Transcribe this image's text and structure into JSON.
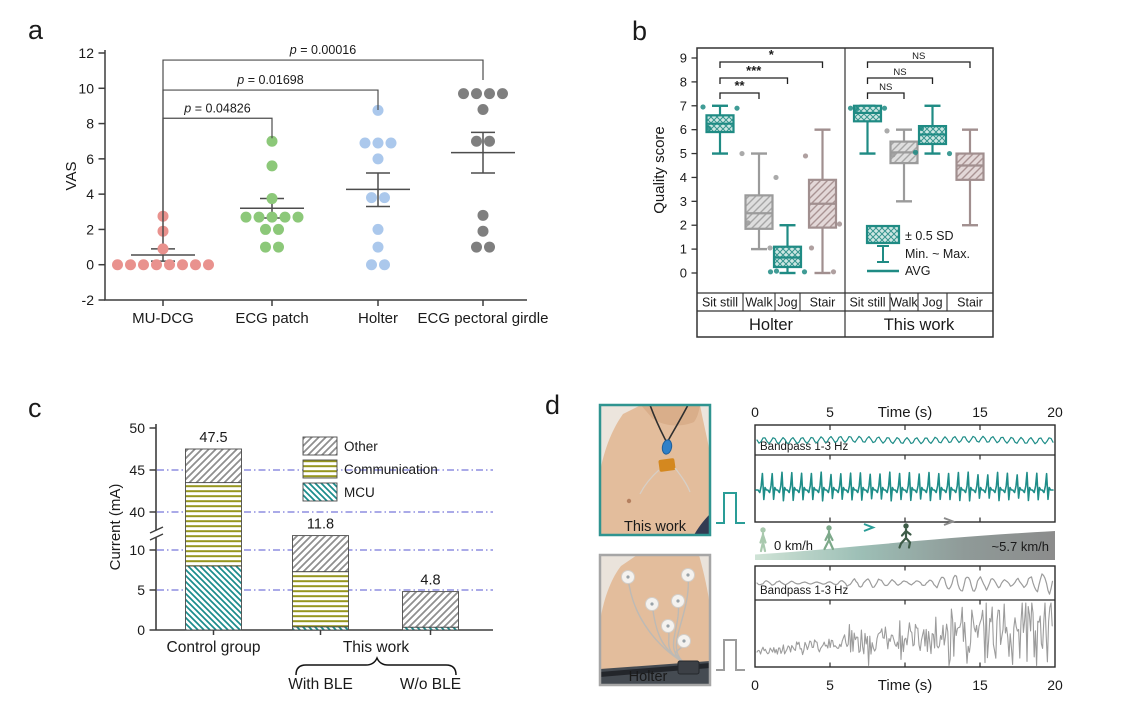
{
  "panels": {
    "a": "a",
    "b": "b",
    "c": "c",
    "d": "d"
  },
  "chart_data": [
    {
      "panel": "a",
      "type": "scatter",
      "ylabel": "VAS",
      "ylim": [
        -2,
        12
      ],
      "yticks": [
        -2,
        0,
        2,
        4,
        6,
        8,
        10,
        12
      ],
      "categories": [
        "MU-DCG",
        "ECG patch",
        "Holter",
        "ECG pectoral girdle"
      ],
      "colors": [
        "#e9928e",
        "#8cc879",
        "#abc8ec",
        "#7f7f7f"
      ],
      "points": [
        [
          0,
          0,
          0,
          0,
          0,
          0,
          0,
          0,
          0.9,
          1.9,
          2.75
        ],
        [
          1,
          1,
          2,
          2,
          2.7,
          2.7,
          2.7,
          2.7,
          2.7,
          3.75,
          5.6,
          7
        ],
        [
          0,
          0,
          1,
          2,
          3.8,
          3.8,
          6,
          6.9,
          6.9,
          6.9,
          8.75
        ],
        [
          1,
          1,
          1.9,
          2.8,
          7,
          7,
          8.8,
          9.7,
          9.7,
          9.7,
          9.7
        ]
      ],
      "mean": [
        0.55,
        3.2,
        4.27,
        6.35
      ],
      "err_low": [
        0.2,
        2.65,
        3.3,
        5.2
      ],
      "err_high": [
        0.9,
        3.75,
        5.2,
        7.5
      ],
      "pvalues": [
        {
          "label": "p = 0.04826",
          "from": 0,
          "to": 1,
          "height": 8.3
        },
        {
          "label": "p = 0.01698",
          "from": 0,
          "to": 2,
          "height": 9.9
        },
        {
          "label": "p = 0.00016",
          "from": 0,
          "to": 3,
          "height": 11.6
        }
      ]
    },
    {
      "panel": "b",
      "type": "box",
      "ylabel": "Quality score",
      "ylim": [
        0,
        9
      ],
      "legend": {
        "box": "± 0.5 SD",
        "whisker": "Min. ~ Max.",
        "line": "AVG"
      },
      "groups": [
        {
          "name": "Holter",
          "boxes": [
            {
              "cat": "Sit still",
              "color": "teal",
              "min": 5,
              "max": 7,
              "q1": 5.9,
              "q3": 6.6,
              "avg": 6.25,
              "marks": [
                6.95,
                6.9,
                6.05
              ]
            },
            {
              "cat": "Walk",
              "color": "gray",
              "min": 1,
              "max": 5,
              "q1": 1.85,
              "q3": 3.25,
              "avg": 2.5,
              "marks": [
                5,
                4,
                2.1,
                1.05
              ]
            },
            {
              "cat": "Jog",
              "color": "teal",
              "min": 0,
              "max": 2,
              "q1": 0.25,
              "q3": 1.1,
              "avg": 0.65,
              "marks": [
                0.05,
                0.05,
                0.08
              ]
            },
            {
              "cat": "Stair",
              "color": "mauve",
              "min": 0,
              "max": 6,
              "q1": 1.9,
              "q3": 3.9,
              "avg": 2.9,
              "marks": [
                4.9,
                2.05,
                1.05,
                0.05
              ]
            }
          ],
          "sig": [
            {
              "to": 1,
              "label": "**"
            },
            {
              "to": 2,
              "label": "***"
            },
            {
              "to": 3,
              "label": "*"
            }
          ]
        },
        {
          "name": "This work",
          "boxes": [
            {
              "cat": "Sit still",
              "color": "teal",
              "min": 5,
              "max": 7,
              "q1": 6.35,
              "q3": 7,
              "avg": 6.7,
              "marks": [
                6.9,
                6.9,
                6.85
              ]
            },
            {
              "cat": "Walk",
              "color": "gray",
              "min": 3,
              "max": 6,
              "q1": 4.6,
              "q3": 5.5,
              "avg": 5.05,
              "marks": [
                5.95,
                5.9,
                4.95
              ]
            },
            {
              "cat": "Jog",
              "color": "teal",
              "min": 5,
              "max": 7,
              "q1": 5.4,
              "q3": 6.15,
              "avg": 5.8,
              "marks": [
                5.05,
                5,
                6.05
              ]
            },
            {
              "cat": "Stair",
              "color": "mauve",
              "min": 2,
              "max": 6,
              "q1": 3.9,
              "q3": 5,
              "avg": 4.5,
              "marks": []
            }
          ],
          "sig": [
            {
              "to": 1,
              "label": "NS"
            },
            {
              "to": 2,
              "label": "NS"
            },
            {
              "to": 3,
              "label": "NS"
            }
          ]
        }
      ]
    },
    {
      "panel": "c",
      "type": "bar",
      "ylabel": "Current (mA)",
      "yticks": [
        0,
        5,
        10,
        40,
        45,
        50
      ],
      "gridlines": [
        5,
        10,
        40,
        45
      ],
      "axis_break_between": [
        10,
        40
      ],
      "series_order": [
        "MCU",
        "Communication",
        "Other"
      ],
      "legend": [
        "Other",
        "Communication",
        "MCU"
      ],
      "colors": {
        "MCU": "#1a8c8c",
        "Communication": "#96961e",
        "Other": "#8f8f8f"
      },
      "bars": [
        {
          "label": "Control group",
          "total": 47.5,
          "segments": {
            "MCU": 8,
            "Communication": 35.5,
            "Other": 4
          }
        },
        {
          "label": "With BLE",
          "total": 11.8,
          "segments": {
            "MCU": 0.4,
            "Communication": 6.9,
            "Other": 4.5
          }
        },
        {
          "label": "W/o BLE",
          "total": 4.8,
          "segments": {
            "MCU": 0.35,
            "Communication": 0,
            "Other": 4.45
          }
        }
      ],
      "group_labels": [
        "Control group",
        "This work"
      ],
      "sub_labels": [
        "With BLE",
        "W/o BLE"
      ]
    },
    {
      "panel": "d",
      "type": "line",
      "photo_labels": [
        "This work",
        "Holter"
      ],
      "x_axis": {
        "title": "Time (s)",
        "ticks": [
          0,
          5,
          15,
          20
        ],
        "range": [
          0,
          20
        ]
      },
      "top_trace_label": "Bandpass 1-3 Hz",
      "bottom_trace_label": "Bandpass 1-3 Hz",
      "speed_start": "0 km/h",
      "speed_end": "~5.7 km/h",
      "series": [
        {
          "name": "This work",
          "color": "#1e8d88"
        },
        {
          "name": "Holter",
          "color": "#9c9c9c"
        }
      ]
    }
  ]
}
